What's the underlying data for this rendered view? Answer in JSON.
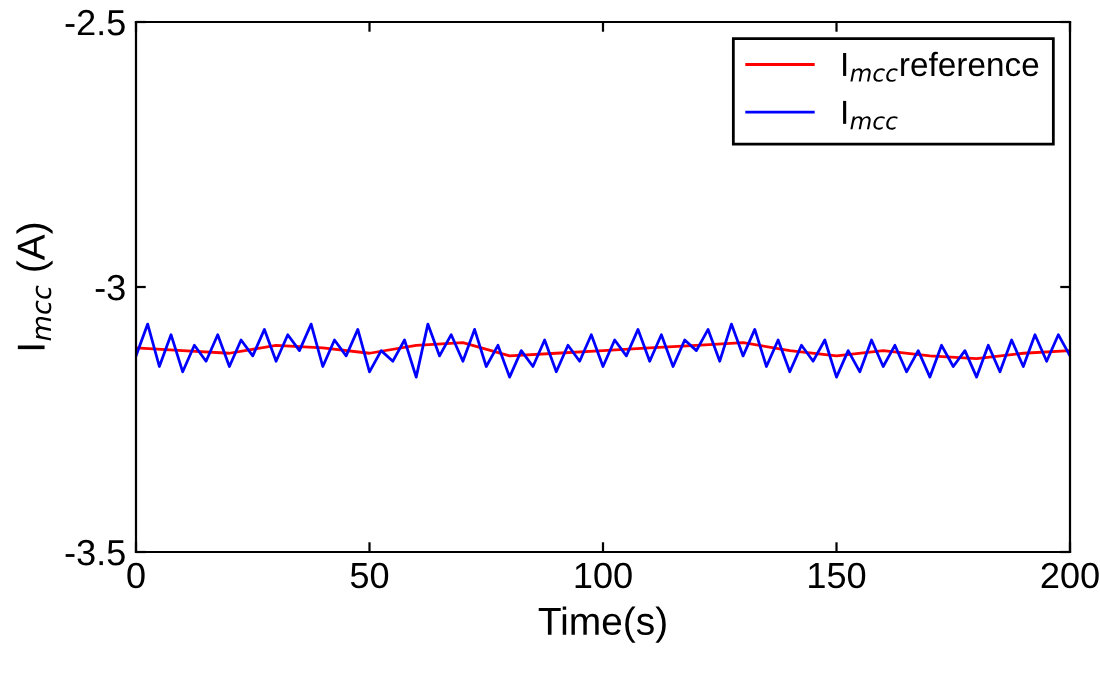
{
  "chart_data": {
    "type": "line",
    "xlabel": "Time(s)",
    "ylabel": "I$_{mcc}$ (A)",
    "xlim": [
      0,
      200
    ],
    "ylim": [
      -3.5,
      -2.5
    ],
    "xticks": [
      0,
      50,
      100,
      150,
      200
    ],
    "yticks": [
      -3.5,
      -3,
      -2.5
    ],
    "grid": false,
    "legend": "top right",
    "series": [
      {
        "name": "I$_{mcc}$reference",
        "color": "#ff0000",
        "x": [
          0,
          10,
          20,
          30,
          40,
          50,
          60,
          70,
          80,
          90,
          100,
          110,
          120,
          130,
          140,
          150,
          160,
          170,
          180,
          190,
          200
        ],
        "values": [
          -3.115,
          -3.12,
          -3.125,
          -3.11,
          -3.115,
          -3.125,
          -3.11,
          -3.105,
          -3.13,
          -3.125,
          -3.12,
          -3.115,
          -3.11,
          -3.105,
          -3.12,
          -3.13,
          -3.12,
          -3.13,
          -3.135,
          -3.125,
          -3.12
        ]
      },
      {
        "name": "I$_{mcc}$",
        "color": "#0000ff",
        "x": [
          0,
          2.5,
          5,
          7.5,
          10,
          12.5,
          15,
          17.5,
          20,
          22.5,
          25,
          27.5,
          30,
          32.5,
          35,
          37.5,
          40,
          42.5,
          45,
          47.5,
          50,
          52.5,
          55,
          57.5,
          60,
          62.5,
          65,
          67.5,
          70,
          72.5,
          75,
          77.5,
          80,
          82.5,
          85,
          87.5,
          90,
          92.5,
          95,
          97.5,
          100,
          102.5,
          105,
          107.5,
          110,
          112.5,
          115,
          117.5,
          120,
          122.5,
          125,
          127.5,
          130,
          132.5,
          135,
          137.5,
          140,
          142.5,
          145,
          147.5,
          150,
          152.5,
          155,
          157.5,
          160,
          162.5,
          165,
          167.5,
          170,
          172.5,
          175,
          177.5,
          180,
          182.5,
          185,
          187.5,
          190,
          192.5,
          195,
          197.5,
          200
        ],
        "values": [
          -3.13,
          -3.07,
          -3.15,
          -3.09,
          -3.16,
          -3.11,
          -3.14,
          -3.09,
          -3.15,
          -3.1,
          -3.13,
          -3.08,
          -3.14,
          -3.09,
          -3.12,
          -3.07,
          -3.15,
          -3.1,
          -3.13,
          -3.08,
          -3.16,
          -3.12,
          -3.14,
          -3.1,
          -3.17,
          -3.07,
          -3.13,
          -3.09,
          -3.14,
          -3.08,
          -3.15,
          -3.11,
          -3.17,
          -3.12,
          -3.15,
          -3.1,
          -3.16,
          -3.11,
          -3.14,
          -3.09,
          -3.15,
          -3.1,
          -3.13,
          -3.08,
          -3.14,
          -3.09,
          -3.15,
          -3.1,
          -3.12,
          -3.08,
          -3.14,
          -3.07,
          -3.13,
          -3.08,
          -3.15,
          -3.1,
          -3.16,
          -3.11,
          -3.14,
          -3.1,
          -3.17,
          -3.12,
          -3.16,
          -3.1,
          -3.15,
          -3.11,
          -3.16,
          -3.12,
          -3.17,
          -3.11,
          -3.15,
          -3.12,
          -3.17,
          -3.11,
          -3.16,
          -3.1,
          -3.15,
          -3.09,
          -3.14,
          -3.09,
          -3.13
        ]
      }
    ]
  }
}
